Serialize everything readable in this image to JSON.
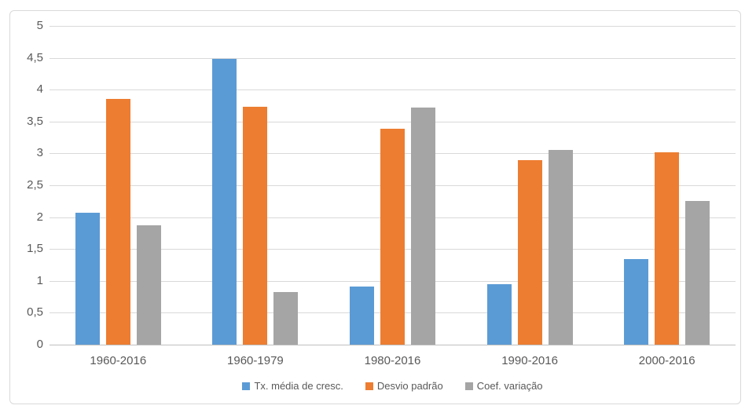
{
  "chart_data": {
    "type": "bar",
    "title": "",
    "xlabel": "",
    "ylabel": "",
    "categories": [
      "1960-2016",
      "1960-1979",
      "1980-2016",
      "1990-2016",
      "2000-2016"
    ],
    "series": [
      {
        "name": "Tx. média de cresc.",
        "color": "#5B9BD5",
        "values": [
          2.07,
          4.48,
          0.91,
          0.95,
          1.34
        ]
      },
      {
        "name": "Desvio padrão",
        "color": "#ED7D31",
        "values": [
          3.86,
          3.73,
          3.39,
          2.9,
          3.02
        ]
      },
      {
        "name": "Coef. variação",
        "color": "#A5A5A5",
        "values": [
          1.87,
          0.83,
          3.72,
          3.05,
          2.26
        ]
      }
    ],
    "ylim": [
      0,
      5
    ],
    "ytick_step": 0.5,
    "ytick_labels": [
      "0",
      "0,5",
      "1",
      "1,5",
      "2",
      "2,5",
      "3",
      "3,5",
      "4",
      "4,5",
      "5"
    ],
    "grid": true,
    "legend_position": "bottom"
  },
  "style_colors": {
    "gridline": "#D9D9D9",
    "axis_line": "#BFBFBF",
    "tick_text": "#595959",
    "frame_border": "#D9D9D9",
    "background": "#FFFFFF"
  }
}
